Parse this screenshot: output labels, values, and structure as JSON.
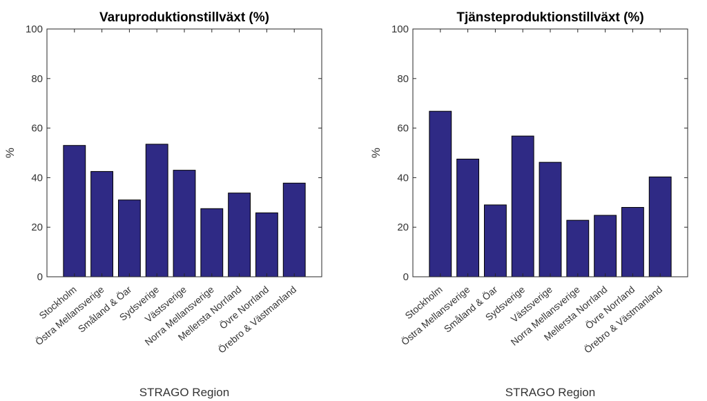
{
  "chart_data": [
    {
      "type": "bar",
      "title": "Varuproduktionstillväxt (%)",
      "xlabel": "STRAGO Region",
      "ylabel": "%",
      "ylim": [
        0,
        100
      ],
      "yticks": [
        0,
        20,
        40,
        60,
        80,
        100
      ],
      "grid": false,
      "categories": [
        "Stockholm",
        "Östra Mellansverige",
        "Småland & Öar",
        "Sydsverige",
        "Västsverige",
        "Norra Mellansverige",
        "Mellersta Norrland",
        "Övre Norrland",
        "Örebro & Västmanland"
      ],
      "values": [
        53,
        42.5,
        31,
        53.5,
        43,
        27.5,
        33.8,
        25.8,
        37.8
      ],
      "bar_color": "#2f2a85"
    },
    {
      "type": "bar",
      "title": "Tjänsteproduktionstillväxt (%)",
      "xlabel": "STRAGO Region",
      "ylabel": "%",
      "ylim": [
        0,
        100
      ],
      "yticks": [
        0,
        20,
        40,
        60,
        80,
        100
      ],
      "grid": false,
      "categories": [
        "Stockholm",
        "Östra Mellansverige",
        "Småland & Öar",
        "Sydsverige",
        "Västsverige",
        "Norra Mellansverige",
        "Mellersta Norrland",
        "Övre Norrland",
        "Örebro & Västmanland"
      ],
      "values": [
        66.8,
        47.5,
        29,
        56.8,
        46.2,
        22.8,
        24.8,
        28,
        40.3
      ],
      "bar_color": "#2f2a85"
    }
  ]
}
